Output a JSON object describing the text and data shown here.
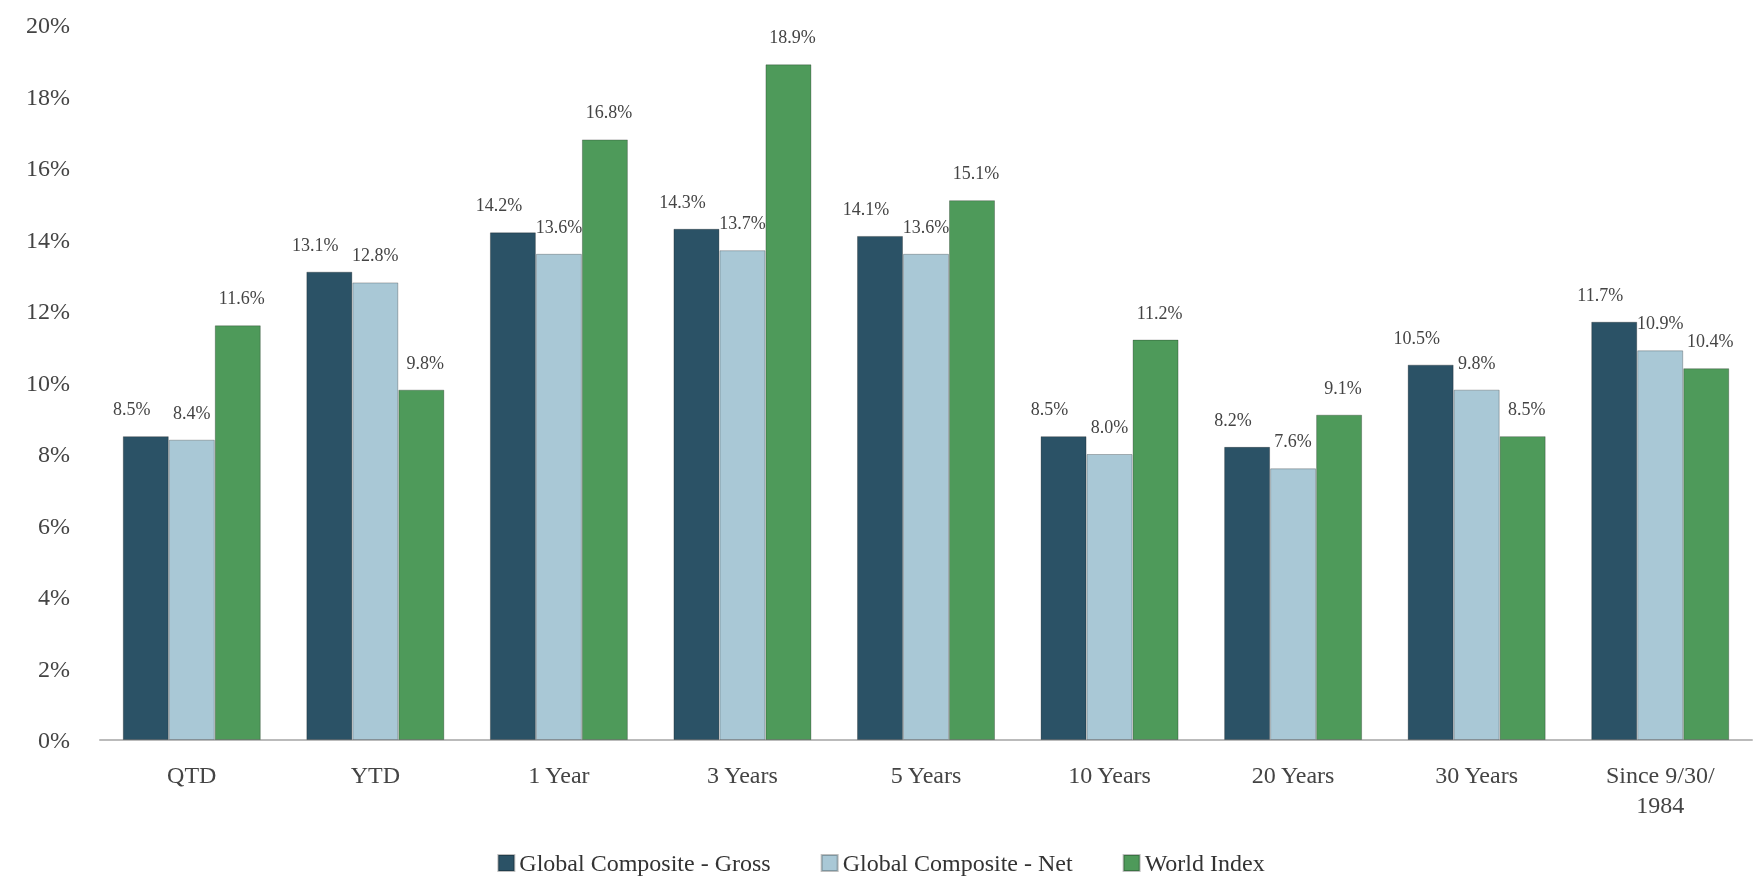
{
  "chart_data": {
    "type": "bar",
    "categories": [
      "QTD",
      "YTD",
      "1 Year",
      "3 Years",
      "5 Years",
      "10 Years",
      "20 Years",
      "30 Years",
      "Since 9/30/1984"
    ],
    "series": [
      {
        "name": "Global Composite - Gross",
        "color": "#2b5266",
        "values": [
          8.5,
          13.1,
          14.2,
          14.3,
          14.1,
          8.5,
          8.2,
          10.5,
          11.7
        ],
        "value_labels": [
          "8.5%",
          "13.1%",
          "14.2%",
          "14.3%",
          "14.1%",
          "8.5%",
          "8.2%",
          "10.5%",
          "11.7%"
        ]
      },
      {
        "name": "Global Composite - Net",
        "color": "#a9c8d6",
        "values": [
          8.4,
          12.8,
          13.6,
          13.7,
          13.6,
          8.0,
          7.6,
          9.8,
          10.9
        ],
        "value_labels": [
          "8.4%",
          "12.8%",
          "13.6%",
          "13.7%",
          "13.6%",
          "8.0%",
          "7.6%",
          "9.8%",
          "10.9%"
        ]
      },
      {
        "name": "World Index",
        "color": "#4e9a5a",
        "values": [
          11.6,
          9.8,
          16.8,
          18.9,
          15.1,
          11.2,
          9.1,
          8.5,
          10.4
        ],
        "value_labels": [
          "11.6%",
          "9.8%",
          "16.8%",
          "18.9%",
          "15.1%",
          "11.2%",
          "9.1%",
          "8.5%",
          "10.4%"
        ]
      }
    ],
    "ylim": [
      0,
      20
    ],
    "yticks": [
      {
        "value": 0,
        "label": "0%"
      },
      {
        "value": 2,
        "label": "2%"
      },
      {
        "value": 4,
        "label": "4%"
      },
      {
        "value": 6,
        "label": "6%"
      },
      {
        "value": 8,
        "label": "8%"
      },
      {
        "value": 10,
        "label": "10%"
      },
      {
        "value": 12,
        "label": "12%"
      },
      {
        "value": 14,
        "label": "14%"
      },
      {
        "value": 16,
        "label": "16%"
      },
      {
        "value": 18,
        "label": "18%"
      },
      {
        "value": 20,
        "label": "20%"
      }
    ],
    "grid": false,
    "legend": "bottom"
  }
}
